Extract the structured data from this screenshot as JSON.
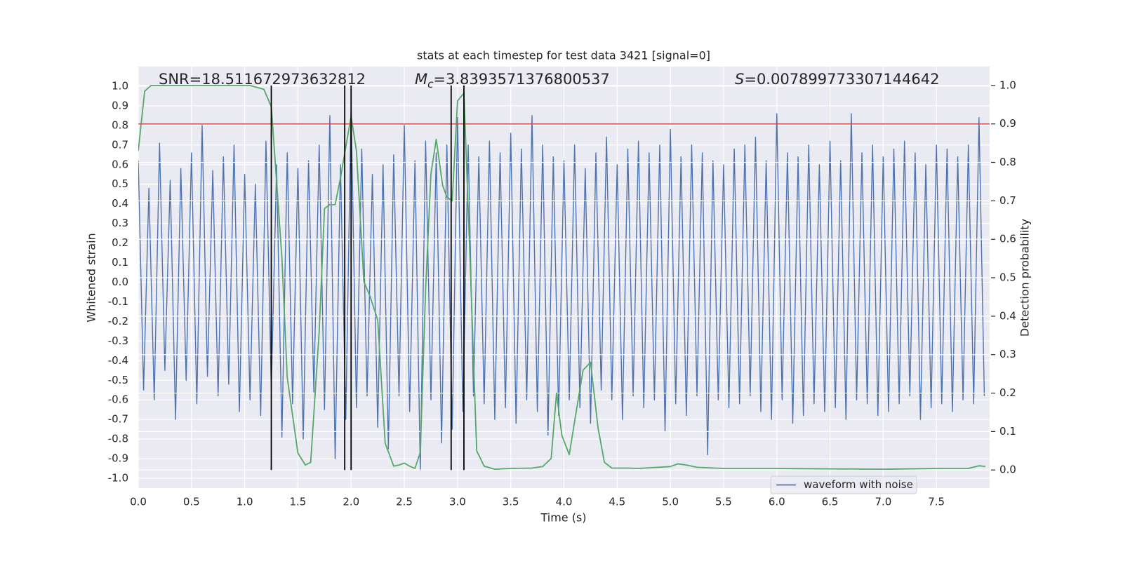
{
  "chart_data": {
    "type": "line",
    "title": "stats at each timestep for test data 3421 [signal=0]",
    "xlabel": "Time (s)",
    "ylabel": "Whitened strain",
    "y2label": "Detection probability",
    "annotations": [
      {
        "text": "SNR=18.511672973632812"
      },
      {
        "italic": "M",
        "sub": "c",
        "text": "=3.8393571376800537"
      },
      {
        "italic": "S",
        "text": "=0.007899773307144642"
      }
    ],
    "xlim": [
      0,
      8
    ],
    "xticks": [
      {
        "value": 0,
        "label": "0.0"
      },
      0.5,
      {
        "value": 1,
        "label": "1.0"
      },
      1.5,
      {
        "value": 2,
        "label": "2.0"
      },
      2.5,
      {
        "value": 3,
        "label": "3.0"
      },
      3.5,
      {
        "value": 4,
        "label": "4.0"
      },
      4.5,
      {
        "value": 5,
        "label": "5.0"
      },
      5.5,
      {
        "value": 6,
        "label": "6.0"
      },
      6.5,
      {
        "value": 7,
        "label": "7.0"
      },
      7.5
    ],
    "ylim": [
      -1.05,
      1.1
    ],
    "yticks": [
      {
        "value": -1,
        "label": "-1.0"
      },
      -0.9,
      -0.8,
      -0.7,
      -0.6,
      -0.5,
      -0.4,
      -0.3,
      -0.2,
      -0.1,
      {
        "value": 0,
        "label": "0.0"
      },
      0.1,
      0.2,
      0.3,
      0.4,
      0.5,
      0.6,
      0.7,
      0.8,
      0.9,
      {
        "value": 1,
        "label": "1.0"
      }
    ],
    "y2lim": [
      -0.047,
      1.049
    ],
    "y2ticks": [
      {
        "value": 0,
        "label": "0.0"
      },
      0.1,
      0.2,
      0.3,
      0.4,
      0.5,
      0.6,
      0.7,
      0.8,
      0.9,
      {
        "value": 1,
        "label": "1.0"
      }
    ],
    "grid": true,
    "legend": "best",
    "series": [
      {
        "name": "waveform with noise",
        "color": "#4c72b0",
        "x": [
          0,
          0.05,
          0.1,
          0.15,
          0.2,
          0.25,
          0.3,
          0.35,
          0.4,
          0.45,
          0.5,
          0.55,
          0.6,
          0.65,
          0.7,
          0.75,
          0.8,
          0.85,
          0.9,
          0.95,
          1,
          1.05,
          1.1,
          1.15,
          1.2,
          1.25,
          1.3,
          1.35,
          1.4,
          1.45,
          1.5,
          1.55,
          1.6,
          1.65,
          1.7,
          1.75,
          1.8,
          1.85,
          1.9,
          1.95,
          2,
          2.05,
          2.1,
          2.15,
          2.2,
          2.25,
          2.3,
          2.35,
          2.4,
          2.45,
          2.5,
          2.55,
          2.6,
          2.65,
          2.7,
          2.75,
          2.8,
          2.85,
          2.9,
          2.95,
          3,
          3.05,
          3.1,
          3.15,
          3.2,
          3.25,
          3.3,
          3.35,
          3.4,
          3.45,
          3.5,
          3.55,
          3.6,
          3.65,
          3.7,
          3.75,
          3.8,
          3.85,
          3.9,
          3.95,
          4,
          4.05,
          4.1,
          4.15,
          4.2,
          4.25,
          4.3,
          4.35,
          4.4,
          4.45,
          4.5,
          4.55,
          4.6,
          4.65,
          4.7,
          4.75,
          4.8,
          4.85,
          4.9,
          4.95,
          5,
          5.05,
          5.1,
          5.15,
          5.2,
          5.25,
          5.3,
          5.35,
          5.4,
          5.45,
          5.5,
          5.55,
          5.6,
          5.65,
          5.7,
          5.75,
          5.8,
          5.85,
          5.9,
          5.95,
          6,
          6.05,
          6.1,
          6.15,
          6.2,
          6.25,
          6.3,
          6.35,
          6.4,
          6.45,
          6.5,
          6.55,
          6.6,
          6.65,
          6.7,
          6.75,
          6.8,
          6.85,
          6.9,
          6.95,
          7,
          7.05,
          7.1,
          7.15,
          7.2,
          7.25,
          7.3,
          7.35,
          7.4,
          7.45,
          7.5,
          7.55,
          7.6,
          7.65,
          7.7,
          7.75,
          7.8,
          7.85,
          7.9,
          7.95
        ],
        "values": [
          0.62,
          -0.55,
          0.48,
          -0.6,
          0.71,
          -0.45,
          0.52,
          -0.7,
          0.58,
          -0.5,
          0.66,
          -0.62,
          0.8,
          -0.48,
          0.57,
          -0.58,
          0.64,
          -0.52,
          0.7,
          -0.66,
          0.55,
          -0.6,
          0.5,
          -0.68,
          0.72,
          -0.55,
          0.6,
          -0.79,
          0.66,
          -0.62,
          0.58,
          -0.8,
          0.62,
          -0.56,
          0.7,
          -0.65,
          0.85,
          -0.9,
          0.6,
          -0.7,
          0.9,
          -0.64,
          0.68,
          -0.58,
          0.55,
          -0.74,
          0.6,
          -0.85,
          0.65,
          -0.58,
          0.8,
          -0.66,
          0.62,
          -0.96,
          0.72,
          -0.6,
          0.66,
          -0.82,
          0.7,
          -0.75,
          0.84,
          -0.66,
          0.7,
          -0.58,
          0.64,
          -0.62,
          0.72,
          -0.7,
          0.66,
          -0.64,
          0.76,
          -0.72,
          0.68,
          -0.6,
          0.85,
          -0.66,
          0.7,
          -0.78,
          0.64,
          -0.68,
          0.62,
          -0.6,
          0.7,
          -0.64,
          0.58,
          -0.72,
          0.66,
          -0.55,
          0.74,
          -0.6,
          0.6,
          -0.7,
          0.68,
          -0.58,
          0.72,
          -0.64,
          0.66,
          -0.6,
          0.7,
          -0.76,
          0.78,
          -0.62,
          0.64,
          -0.68,
          0.7,
          -0.58,
          0.66,
          -0.88,
          0.62,
          -0.6,
          0.6,
          -0.64,
          0.68,
          -0.62,
          0.7,
          -0.58,
          0.74,
          -0.66,
          0.62,
          -0.7,
          0.86,
          -0.6,
          0.66,
          -0.72,
          0.64,
          -0.68,
          0.7,
          -0.62,
          0.6,
          -0.66,
          0.72,
          -0.64,
          0.62,
          -0.7,
          0.86,
          -0.6,
          0.66,
          -0.62,
          0.7,
          -0.68,
          0.64,
          -0.66,
          0.68,
          -0.62,
          0.72,
          -0.58,
          0.66,
          -0.7,
          0.6,
          -0.64,
          0.7,
          -0.62,
          0.68,
          -0.66,
          0.64,
          -0.6,
          0.7,
          -0.62,
          0.84,
          -0.58
        ]
      },
      {
        "color": "#55a868",
        "axis": "y2",
        "x": [
          0,
          0.06,
          0.12,
          1.05,
          1.18,
          1.25,
          1.3,
          1.35,
          1.4,
          1.5,
          1.57,
          1.62,
          1.7,
          1.75,
          1.8,
          1.85,
          1.9,
          1.95,
          2,
          2.05,
          2.12,
          2.18,
          2.25,
          2.32,
          2.4,
          2.45,
          2.5,
          2.55,
          2.6,
          2.65,
          2.7,
          2.75,
          2.8,
          2.86,
          2.9,
          2.95,
          3,
          3.06,
          3.12,
          3.18,
          3.25,
          3.35,
          3.5,
          3.7,
          3.8,
          3.88,
          3.93,
          3.98,
          4.05,
          4.12,
          4.18,
          4.25,
          4.32,
          4.38,
          4.45,
          4.6,
          4.7,
          5,
          5.07,
          5.15,
          5.25,
          5.5,
          6,
          7,
          7.5,
          7.8,
          7.9,
          7.96
        ],
        "values": [
          0.83,
          0.985,
          1,
          1,
          0.99,
          0.945,
          0.75,
          0.55,
          0.24,
          0.044,
          0.013,
          0.02,
          0.36,
          0.68,
          0.69,
          0.69,
          0.76,
          0.84,
          0.92,
          0.83,
          0.49,
          0.45,
          0.39,
          0.07,
          0.01,
          0.013,
          0.018,
          0.01,
          0.004,
          0.046,
          0.47,
          0.77,
          0.86,
          0.74,
          0.71,
          0.7,
          0.96,
          0.98,
          0.53,
          0.05,
          0.01,
          0.002,
          0.004,
          0.005,
          0.009,
          0.03,
          0.2,
          0.09,
          0.04,
          0.16,
          0.26,
          0.28,
          0.11,
          0.02,
          0.005,
          0.005,
          0.004,
          0.009,
          0.016,
          0.013,
          0.007,
          0.004,
          0.004,
          0.002,
          0.004,
          0.004,
          0.011,
          0.009
        ]
      }
    ],
    "hlines": [
      {
        "y": 0.9,
        "color": "#c44e52",
        "axis": "y2"
      }
    ],
    "vlines": {
      "x": [
        1.25,
        1.94,
        2.0,
        2.94,
        3.06
      ],
      "ymin": 0,
      "ymax": 1,
      "color": "#000000",
      "axis": "y2"
    }
  }
}
